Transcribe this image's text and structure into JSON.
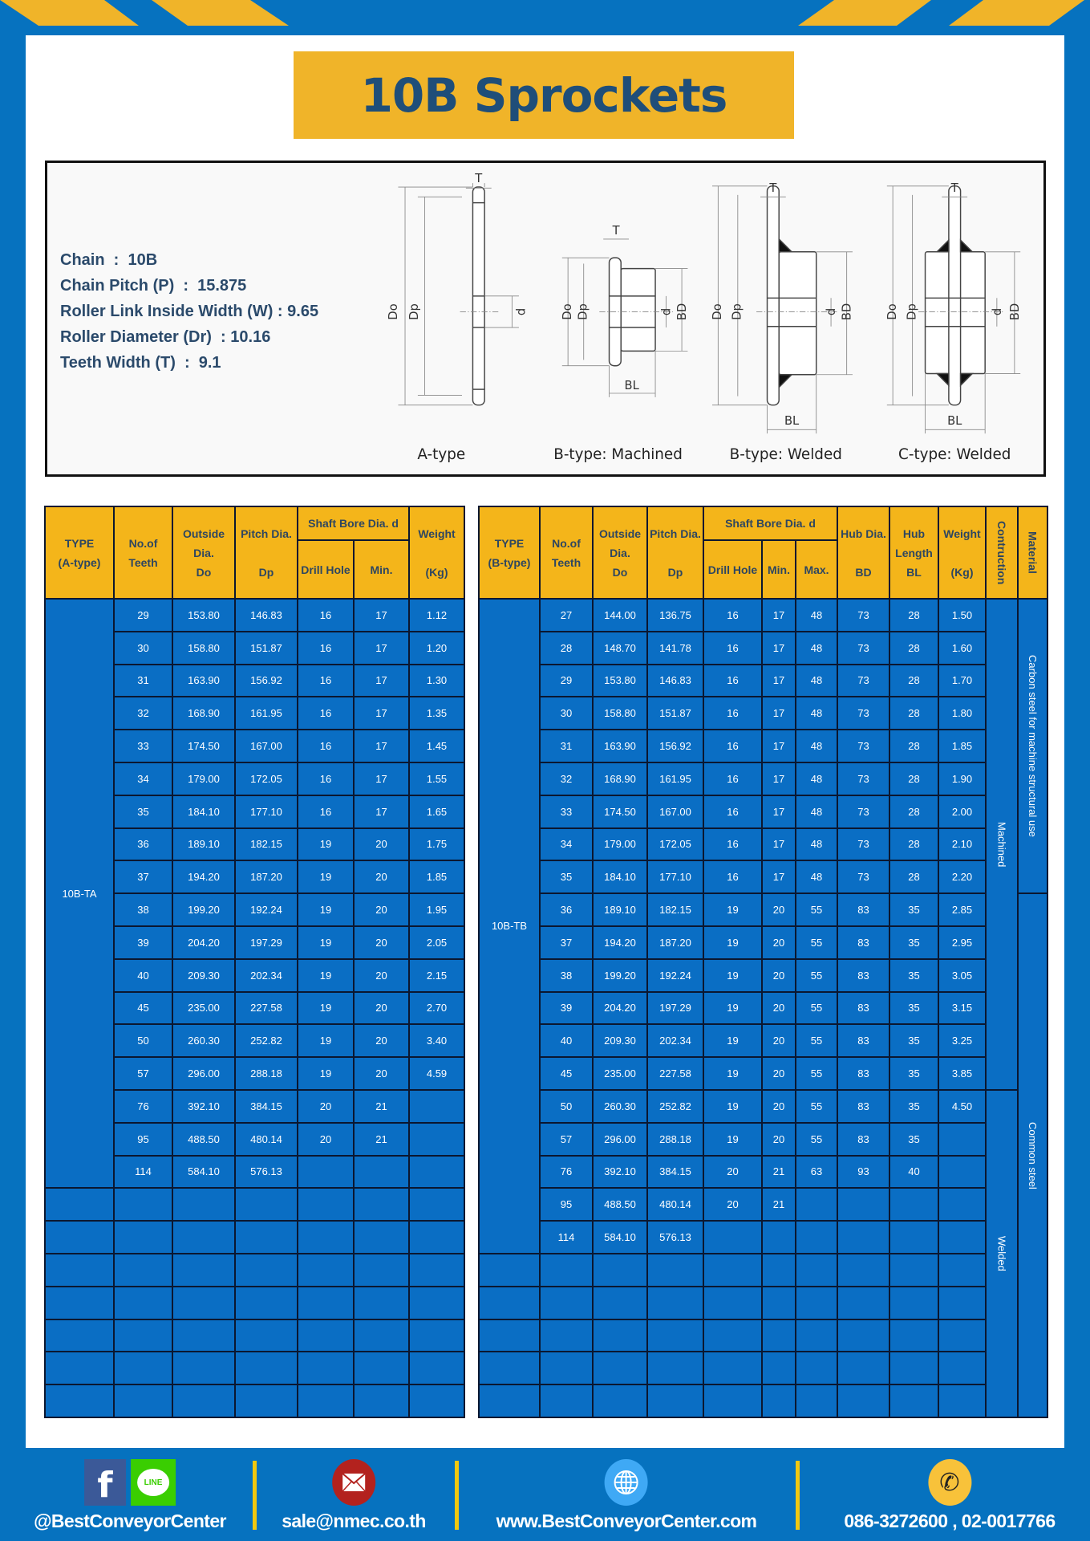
{
  "title": "10B Sprockets",
  "specs": [
    "Chain  :  10B",
    "Chain Pitch (P)  :  15.875",
    "Roller Link Inside Width (W) : 9.65",
    "Roller Diameter (Dr)  : 10.16",
    "Teeth Width (T)  :  9.1"
  ],
  "diagram": {
    "types": [
      "A-type",
      "B-type: Machined",
      "B-type: Welded",
      "C-type: Welded"
    ],
    "labels": {
      "T": "T",
      "Do": "Do",
      "Dp": "Dp",
      "d": "d",
      "BD": "BD",
      "BL": "BL"
    }
  },
  "table_a": {
    "headers": {
      "type": "TYPE\n(A-type)",
      "teeth": "No.of\nTeeth",
      "outside": "Outside\nDia.\nDo",
      "pitch": "Pitch Dia.\n\nDp",
      "bore": "Shaft Bore Dia. d",
      "drill": "Drill Hole",
      "min": "Min.",
      "weight": "Weight\n\n(Kg)"
    },
    "type_label": "10B-TA",
    "rows": [
      [
        "29",
        "153.80",
        "146.83",
        "16",
        "17",
        "1.12"
      ],
      [
        "30",
        "158.80",
        "151.87",
        "16",
        "17",
        "1.20"
      ],
      [
        "31",
        "163.90",
        "156.92",
        "16",
        "17",
        "1.30"
      ],
      [
        "32",
        "168.90",
        "161.95",
        "16",
        "17",
        "1.35"
      ],
      [
        "33",
        "174.50",
        "167.00",
        "16",
        "17",
        "1.45"
      ],
      [
        "34",
        "179.00",
        "172.05",
        "16",
        "17",
        "1.55"
      ],
      [
        "35",
        "184.10",
        "177.10",
        "16",
        "17",
        "1.65"
      ],
      [
        "36",
        "189.10",
        "182.15",
        "19",
        "20",
        "1.75"
      ],
      [
        "37",
        "194.20",
        "187.20",
        "19",
        "20",
        "1.85"
      ],
      [
        "38",
        "199.20",
        "192.24",
        "19",
        "20",
        "1.95"
      ],
      [
        "39",
        "204.20",
        "197.29",
        "19",
        "20",
        "2.05"
      ],
      [
        "40",
        "209.30",
        "202.34",
        "19",
        "20",
        "2.15"
      ],
      [
        "45",
        "235.00",
        "227.58",
        "19",
        "20",
        "2.70"
      ],
      [
        "50",
        "260.30",
        "252.82",
        "19",
        "20",
        "3.40"
      ],
      [
        "57",
        "296.00",
        "288.18",
        "19",
        "20",
        "4.59"
      ],
      [
        "76",
        "392.10",
        "384.15",
        "20",
        "21",
        ""
      ],
      [
        "95",
        "488.50",
        "480.14",
        "20",
        "21",
        ""
      ],
      [
        "114",
        "584.10",
        "576.13",
        "",
        "",
        ""
      ]
    ]
  },
  "table_b": {
    "headers": {
      "type": "TYPE\n(B-type)",
      "teeth": "No.of\nTeeth",
      "outside": "Outside\nDia.\nDo",
      "pitch": "Pitch Dia.\n\nDp",
      "bore": "Shaft Bore Dia. d",
      "drill": "Drill Hole",
      "min": "Min.",
      "max": "Max.",
      "hub_dia": "Hub Dia.\n\nBD",
      "hub_len": "Hub\nLength\nBL",
      "weight": "Weight\n\n(Kg)",
      "construction": "Contruction",
      "material": "Material"
    },
    "type_label": "10B-TB",
    "construction": [
      "Machined",
      "Welded"
    ],
    "material": [
      "Carbon steel for  machine structural use",
      "Common steel"
    ],
    "rows": [
      [
        "27",
        "144.00",
        "136.75",
        "16",
        "17",
        "48",
        "73",
        "28",
        "1.50"
      ],
      [
        "28",
        "148.70",
        "141.78",
        "16",
        "17",
        "48",
        "73",
        "28",
        "1.60"
      ],
      [
        "29",
        "153.80",
        "146.83",
        "16",
        "17",
        "48",
        "73",
        "28",
        "1.70"
      ],
      [
        "30",
        "158.80",
        "151.87",
        "16",
        "17",
        "48",
        "73",
        "28",
        "1.80"
      ],
      [
        "31",
        "163.90",
        "156.92",
        "16",
        "17",
        "48",
        "73",
        "28",
        "1.85"
      ],
      [
        "32",
        "168.90",
        "161.95",
        "16",
        "17",
        "48",
        "73",
        "28",
        "1.90"
      ],
      [
        "33",
        "174.50",
        "167.00",
        "16",
        "17",
        "48",
        "73",
        "28",
        "2.00"
      ],
      [
        "34",
        "179.00",
        "172.05",
        "16",
        "17",
        "48",
        "73",
        "28",
        "2.10"
      ],
      [
        "35",
        "184.10",
        "177.10",
        "16",
        "17",
        "48",
        "73",
        "28",
        "2.20"
      ],
      [
        "36",
        "189.10",
        "182.15",
        "19",
        "20",
        "55",
        "83",
        "35",
        "2.85"
      ],
      [
        "37",
        "194.20",
        "187.20",
        "19",
        "20",
        "55",
        "83",
        "35",
        "2.95"
      ],
      [
        "38",
        "199.20",
        "192.24",
        "19",
        "20",
        "55",
        "83",
        "35",
        "3.05"
      ],
      [
        "39",
        "204.20",
        "197.29",
        "19",
        "20",
        "55",
        "83",
        "35",
        "3.15"
      ],
      [
        "40",
        "209.30",
        "202.34",
        "19",
        "20",
        "55",
        "83",
        "35",
        "3.25"
      ],
      [
        "45",
        "235.00",
        "227.58",
        "19",
        "20",
        "55",
        "83",
        "35",
        "3.85"
      ],
      [
        "50",
        "260.30",
        "252.82",
        "19",
        "20",
        "55",
        "83",
        "35",
        "4.50"
      ],
      [
        "57",
        "296.00",
        "288.18",
        "19",
        "20",
        "55",
        "83",
        "35",
        ""
      ],
      [
        "76",
        "392.10",
        "384.15",
        "20",
        "21",
        "63",
        "93",
        "40",
        ""
      ],
      [
        "95",
        "488.50",
        "480.14",
        "20",
        "21",
        "",
        "",
        "",
        ""
      ],
      [
        "114",
        "584.10",
        "576.13",
        "",
        "",
        "",
        "",
        "",
        ""
      ]
    ]
  },
  "footer": {
    "social": "@BestConveyorCenter",
    "email": "sale@nmec.co.th",
    "website": "www.BestConveyorCenter.com",
    "phone": "086-3272600 , 02-0017766",
    "line_badge": "LINE",
    "facebook_glyph": "f",
    "icons": [
      "facebook-icon",
      "line-icon",
      "email-icon",
      "globe-icon",
      "phone-icon"
    ]
  },
  "colors": {
    "brand_blue": "#0672BF",
    "accent_yellow": "#F0B429",
    "cell_blue": "#0A6EC4",
    "title_navy": "#1F4E79"
  }
}
